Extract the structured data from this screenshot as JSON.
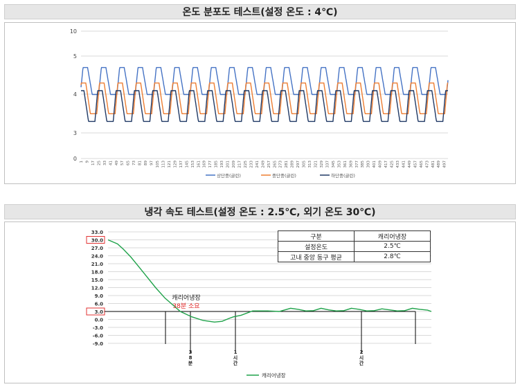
{
  "chart1": {
    "title": "온도 분포도 테스트(설정 온도 : 4℃)",
    "legend": [
      "상단중(글린)",
      "중단중(글린)",
      "하단중(글린)"
    ]
  },
  "chart2": {
    "title": "냉각 속도 테스트(설정 온도 : 2.5℃, 외기 온도 30℃)",
    "annotation_label": "캐리어냉장",
    "annotation_value": "38분 소요",
    "legend_label": "캐리어냉장",
    "table": {
      "header": [
        "구분",
        "캐리어냉장"
      ],
      "rows": [
        [
          "설정온도",
          "2.5℃"
        ],
        [
          "고내 중앙 동구 평균",
          "2.8℃"
        ]
      ]
    },
    "markers": [
      {
        "label": [
          "3",
          "8",
          "분"
        ]
      },
      {
        "label": [
          "1",
          "시",
          "간"
        ]
      },
      {
        "label": [
          "2",
          "시",
          "간"
        ]
      }
    ]
  },
  "chart_data": [
    {
      "type": "line",
      "title": "온도 분포도 테스트(설정 온도 : 4℃)",
      "y_ticks": [
        "0",
        "3",
        "4",
        "5",
        "10"
      ],
      "x_ticks": [
        "1",
        "9",
        "17",
        "25",
        "33",
        "41",
        "49",
        "57",
        "65",
        "73",
        "81",
        "89",
        "97",
        "105",
        "113",
        "121",
        "129",
        "137",
        "145",
        "153",
        "161",
        "169",
        "177",
        "185",
        "193",
        "201",
        "209",
        "217",
        "225",
        "233",
        "241",
        "249",
        "257",
        "265",
        "273",
        "281",
        "289",
        "297",
        "305",
        "313",
        "321",
        "329",
        "337",
        "345",
        "353",
        "361",
        "369",
        "377",
        "385",
        "393",
        "401",
        "409",
        "417",
        "425",
        "433",
        "441",
        "449",
        "457",
        "465",
        "473",
        "481",
        "489",
        "497"
      ],
      "x_range": [
        1,
        502
      ],
      "cycle_length": 25,
      "series": [
        {
          "name": "상단중(글린)",
          "color": "#4472c4",
          "low": 4.0,
          "high": 4.7
        },
        {
          "name": "중단중(글린)",
          "color": "#ed7d31",
          "low": 3.5,
          "high": 4.3
        },
        {
          "name": "하단중(글린)",
          "color": "#1f3864",
          "low": 3.3,
          "high": 4.1
        }
      ],
      "grid": true,
      "legend_position": "bottom"
    },
    {
      "type": "line",
      "title": "냉각 속도 테스트(설정 온도 : 2.5℃, 외기 온도 30℃)",
      "y_ticks": [
        "33.0",
        "30.0",
        "27.0",
        "24.0",
        "21.0",
        "18.0",
        "15.0",
        "12.0",
        "9.0",
        "6.0",
        "3.0",
        "0.0",
        "-3.0",
        "-6.0",
        "-9.0"
      ],
      "ylim": [
        -9,
        33
      ],
      "highlighted_ticks": [
        "30.0",
        "3.0"
      ],
      "series": [
        {
          "name": "캐리어냉장",
          "color": "#1fa24a",
          "x": [
            0,
            5,
            8,
            12,
            16,
            20,
            25,
            30,
            34,
            38,
            44,
            50,
            56,
            60,
            64,
            66,
            70,
            76,
            84,
            90,
            96,
            100,
            104,
            108,
            112,
            116,
            120,
            124,
            128,
            132,
            136,
            140,
            144,
            148,
            152,
            156,
            160,
            164,
            168,
            170
          ],
          "y": [
            30,
            28.5,
            26.5,
            23.5,
            20,
            16.5,
            12,
            8,
            5.5,
            3,
            1,
            -0.4,
            -1.0,
            -0.7,
            0.5,
            1.0,
            1.6,
            3.2,
            3.2,
            3.0,
            4.2,
            3.8,
            3.2,
            3.3,
            4.2,
            3.6,
            3.2,
            3.3,
            4.2,
            3.8,
            3.2,
            3.3,
            4.0,
            3.6,
            3.2,
            3.3,
            4.2,
            3.8,
            3.5,
            3.0
          ]
        }
      ],
      "grid": true,
      "legend_position": "bottom"
    }
  ]
}
